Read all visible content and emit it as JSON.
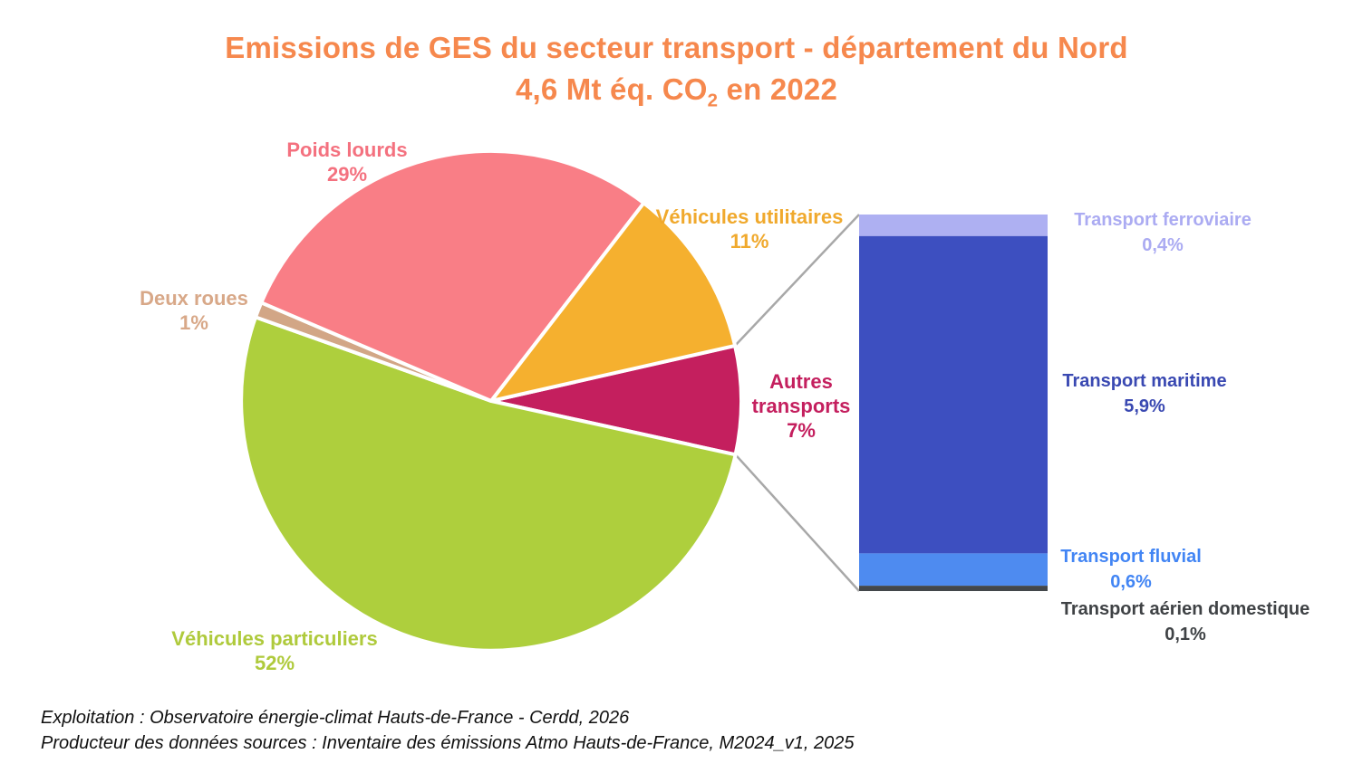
{
  "title": {
    "line1": "Emissions de GES du secteur transport - département du Nord",
    "line2_pre": "4,6 Mt éq. CO",
    "line2_sub": "2",
    "line2_post": " en 2022",
    "color": "#F6884D"
  },
  "chart_data": {
    "type": "pie",
    "title": "Emissions de GES du secteur transport - département du Nord",
    "subtitle": "4,6 Mt éq. CO2 en 2022",
    "unit": "%",
    "start_angle_deg": -12.8,
    "direction": "clockwise",
    "slices": [
      {
        "id": "autres-transports",
        "label": "Autres transports",
        "value_pct": 7,
        "display": "7%",
        "color": "#C41F5E",
        "label_color": "#C41F5E"
      },
      {
        "id": "vehicules-particuliers",
        "label": "Véhicules particuliers",
        "value_pct": 52,
        "display": "52%",
        "color": "#AECF3D",
        "label_color": "#AFCA3C"
      },
      {
        "id": "deux-roues",
        "label": "Deux roues",
        "value_pct": 1,
        "display": "1%",
        "color": "#D2A686",
        "label_color": "#D8A888"
      },
      {
        "id": "poids-lourds",
        "label": "Poids lourds",
        "value_pct": 29,
        "display": "29%",
        "color": "#F97E86",
        "label_color": "#F4717F"
      },
      {
        "id": "vehicules-utilitaires",
        "label": "Véhicules utilitaires",
        "value_pct": 11,
        "display": "11%",
        "color": "#F5B02F",
        "label_color": "#F0A92D"
      }
    ],
    "breakdown_bar": {
      "source_slice": "Autres transports",
      "segments": [
        {
          "id": "transport-ferroviaire",
          "label": "Transport ferroviaire",
          "value_pct": 0.4,
          "display": "0,4%",
          "color": "#AEB0F2",
          "label_color": "#ABABF2"
        },
        {
          "id": "transport-maritime",
          "label": "Transport maritime",
          "value_pct": 5.9,
          "display": "5,9%",
          "color": "#3D4FC0",
          "label_color": "#3A49B2"
        },
        {
          "id": "transport-fluvial",
          "label": "Transport fluvial",
          "value_pct": 0.6,
          "display": "0,6%",
          "color": "#4E8BF0",
          "label_color": "#4285F4"
        },
        {
          "id": "transport-aerien-domestique",
          "label": "Transport aérien domestique",
          "value_pct": 0.1,
          "display": "0,1%",
          "color": "#43474B",
          "label_color": "#3F4245"
        }
      ]
    },
    "connector_color": "#A8A8A8",
    "slice_border_color": "#FFFFFF"
  },
  "footer": {
    "line1": "Exploitation : Observatoire énergie-climat Hauts-de-France - Cerdd, 2026",
    "line2": "Producteur des données sources : Inventaire des émissions Atmo Hauts-de-France, M2024_v1, 2025"
  }
}
